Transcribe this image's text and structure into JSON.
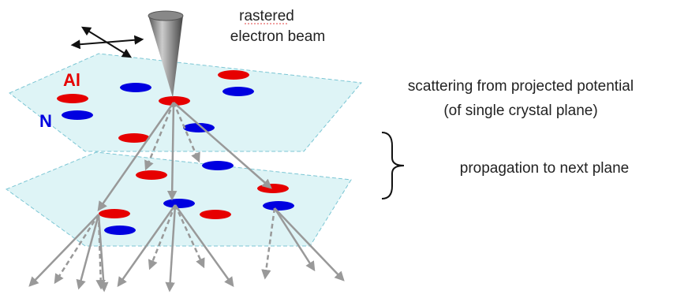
{
  "beam_label": {
    "line1": "rastered",
    "line2": "electron beam"
  },
  "atoms": {
    "al": "Al",
    "n": "N"
  },
  "annotations": {
    "scattering_line1": "scattering from projected potential",
    "scattering_line2": "(of single crystal plane)",
    "propagation": "propagation to next plane"
  }
}
